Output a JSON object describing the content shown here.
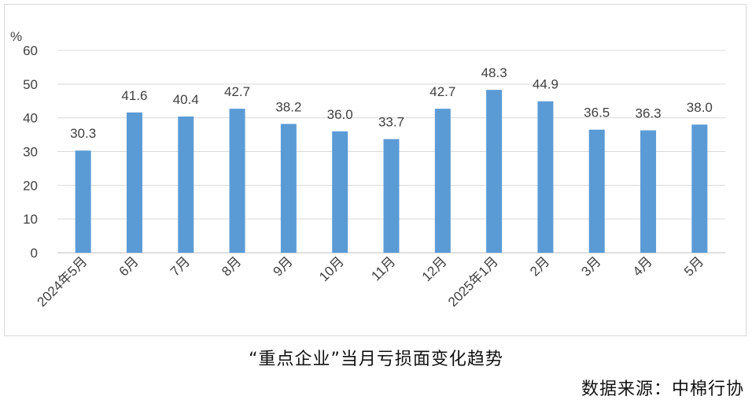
{
  "chart_data": {
    "type": "bar",
    "title": "“重点企业”当月亏损面变化趋势",
    "source": "数据来源：中棉行协",
    "ylabel": "%",
    "xlabel": "",
    "ylim": [
      0,
      60
    ],
    "yticks": [
      "0",
      "10",
      "20",
      "30",
      "40",
      "50",
      "60"
    ],
    "grid": true,
    "categories": [
      "2024年5月",
      "6月",
      "7月",
      "8月",
      "9月",
      "10月",
      "11月",
      "12月",
      "2025年1月",
      "2月",
      "3月",
      "4月",
      "5月"
    ],
    "values": [
      30.3,
      41.6,
      40.4,
      42.7,
      38.2,
      36.0,
      33.7,
      42.7,
      48.3,
      44.9,
      36.5,
      36.3,
      38.0
    ],
    "value_labels": [
      "30.3",
      "41.6",
      "40.4",
      "42.7",
      "38.2",
      "36.0",
      "33.7",
      "42.7",
      "48.3",
      "44.9",
      "36.5",
      "36.3",
      "38.0"
    ],
    "colors": {
      "bar": "#5b9bd5",
      "grid": "#d9d9d9",
      "axis": "#bfbfbf",
      "text": "#404040"
    }
  }
}
